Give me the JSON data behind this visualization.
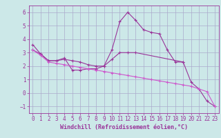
{
  "background_color": "#cce8e8",
  "grid_color": "#aaaacc",
  "line_color": "#993399",
  "line_color2": "#cc55cc",
  "xlabel": "Windchill (Refroidissement éolien,°C)",
  "ylim": [
    -1.5,
    6.5
  ],
  "xlim": [
    -0.5,
    23.5
  ],
  "yticks": [
    -1,
    0,
    1,
    2,
    3,
    4,
    5,
    6
  ],
  "xticks": [
    0,
    1,
    2,
    3,
    4,
    5,
    6,
    7,
    8,
    9,
    10,
    11,
    12,
    13,
    14,
    15,
    16,
    17,
    18,
    19,
    20,
    21,
    22,
    23
  ],
  "series1_x": [
    0,
    1,
    2,
    3,
    4,
    5,
    6,
    7,
    8,
    9,
    10,
    11,
    12,
    13,
    14,
    15,
    16,
    17,
    18,
    19,
    20,
    21,
    22,
    23
  ],
  "series1_y": [
    3.6,
    2.9,
    2.4,
    2.4,
    2.6,
    1.7,
    1.7,
    1.8,
    1.8,
    2.0,
    3.2,
    5.3,
    6.0,
    5.4,
    4.7,
    4.5,
    4.4,
    3.2,
    2.3,
    2.3,
    0.8,
    0.3,
    -0.6,
    -1.0
  ],
  "series2_x": [
    0,
    1,
    2,
    3,
    4,
    5,
    6,
    7,
    8,
    9,
    10,
    11,
    12,
    13,
    19
  ],
  "series2_y": [
    3.2,
    2.9,
    2.4,
    2.4,
    2.5,
    2.4,
    2.3,
    2.1,
    2.0,
    2.0,
    2.5,
    3.0,
    3.0,
    3.0,
    2.3
  ],
  "series3_x": [
    0,
    1,
    2,
    3,
    4,
    5,
    6,
    7,
    8,
    9,
    10,
    11,
    12,
    13,
    14,
    15,
    16,
    17,
    18,
    19,
    20,
    21,
    22,
    23
  ],
  "series3_y": [
    3.2,
    2.8,
    2.3,
    2.2,
    2.1,
    2.0,
    1.9,
    1.8,
    1.7,
    1.6,
    1.5,
    1.4,
    1.3,
    1.2,
    1.1,
    1.0,
    0.9,
    0.8,
    0.7,
    0.6,
    0.5,
    0.3,
    0.1,
    -1.0
  ],
  "font_color": "#993399",
  "font_family": "monospace",
  "xlabel_fontsize": 6.0,
  "tick_fontsize": 5.5
}
